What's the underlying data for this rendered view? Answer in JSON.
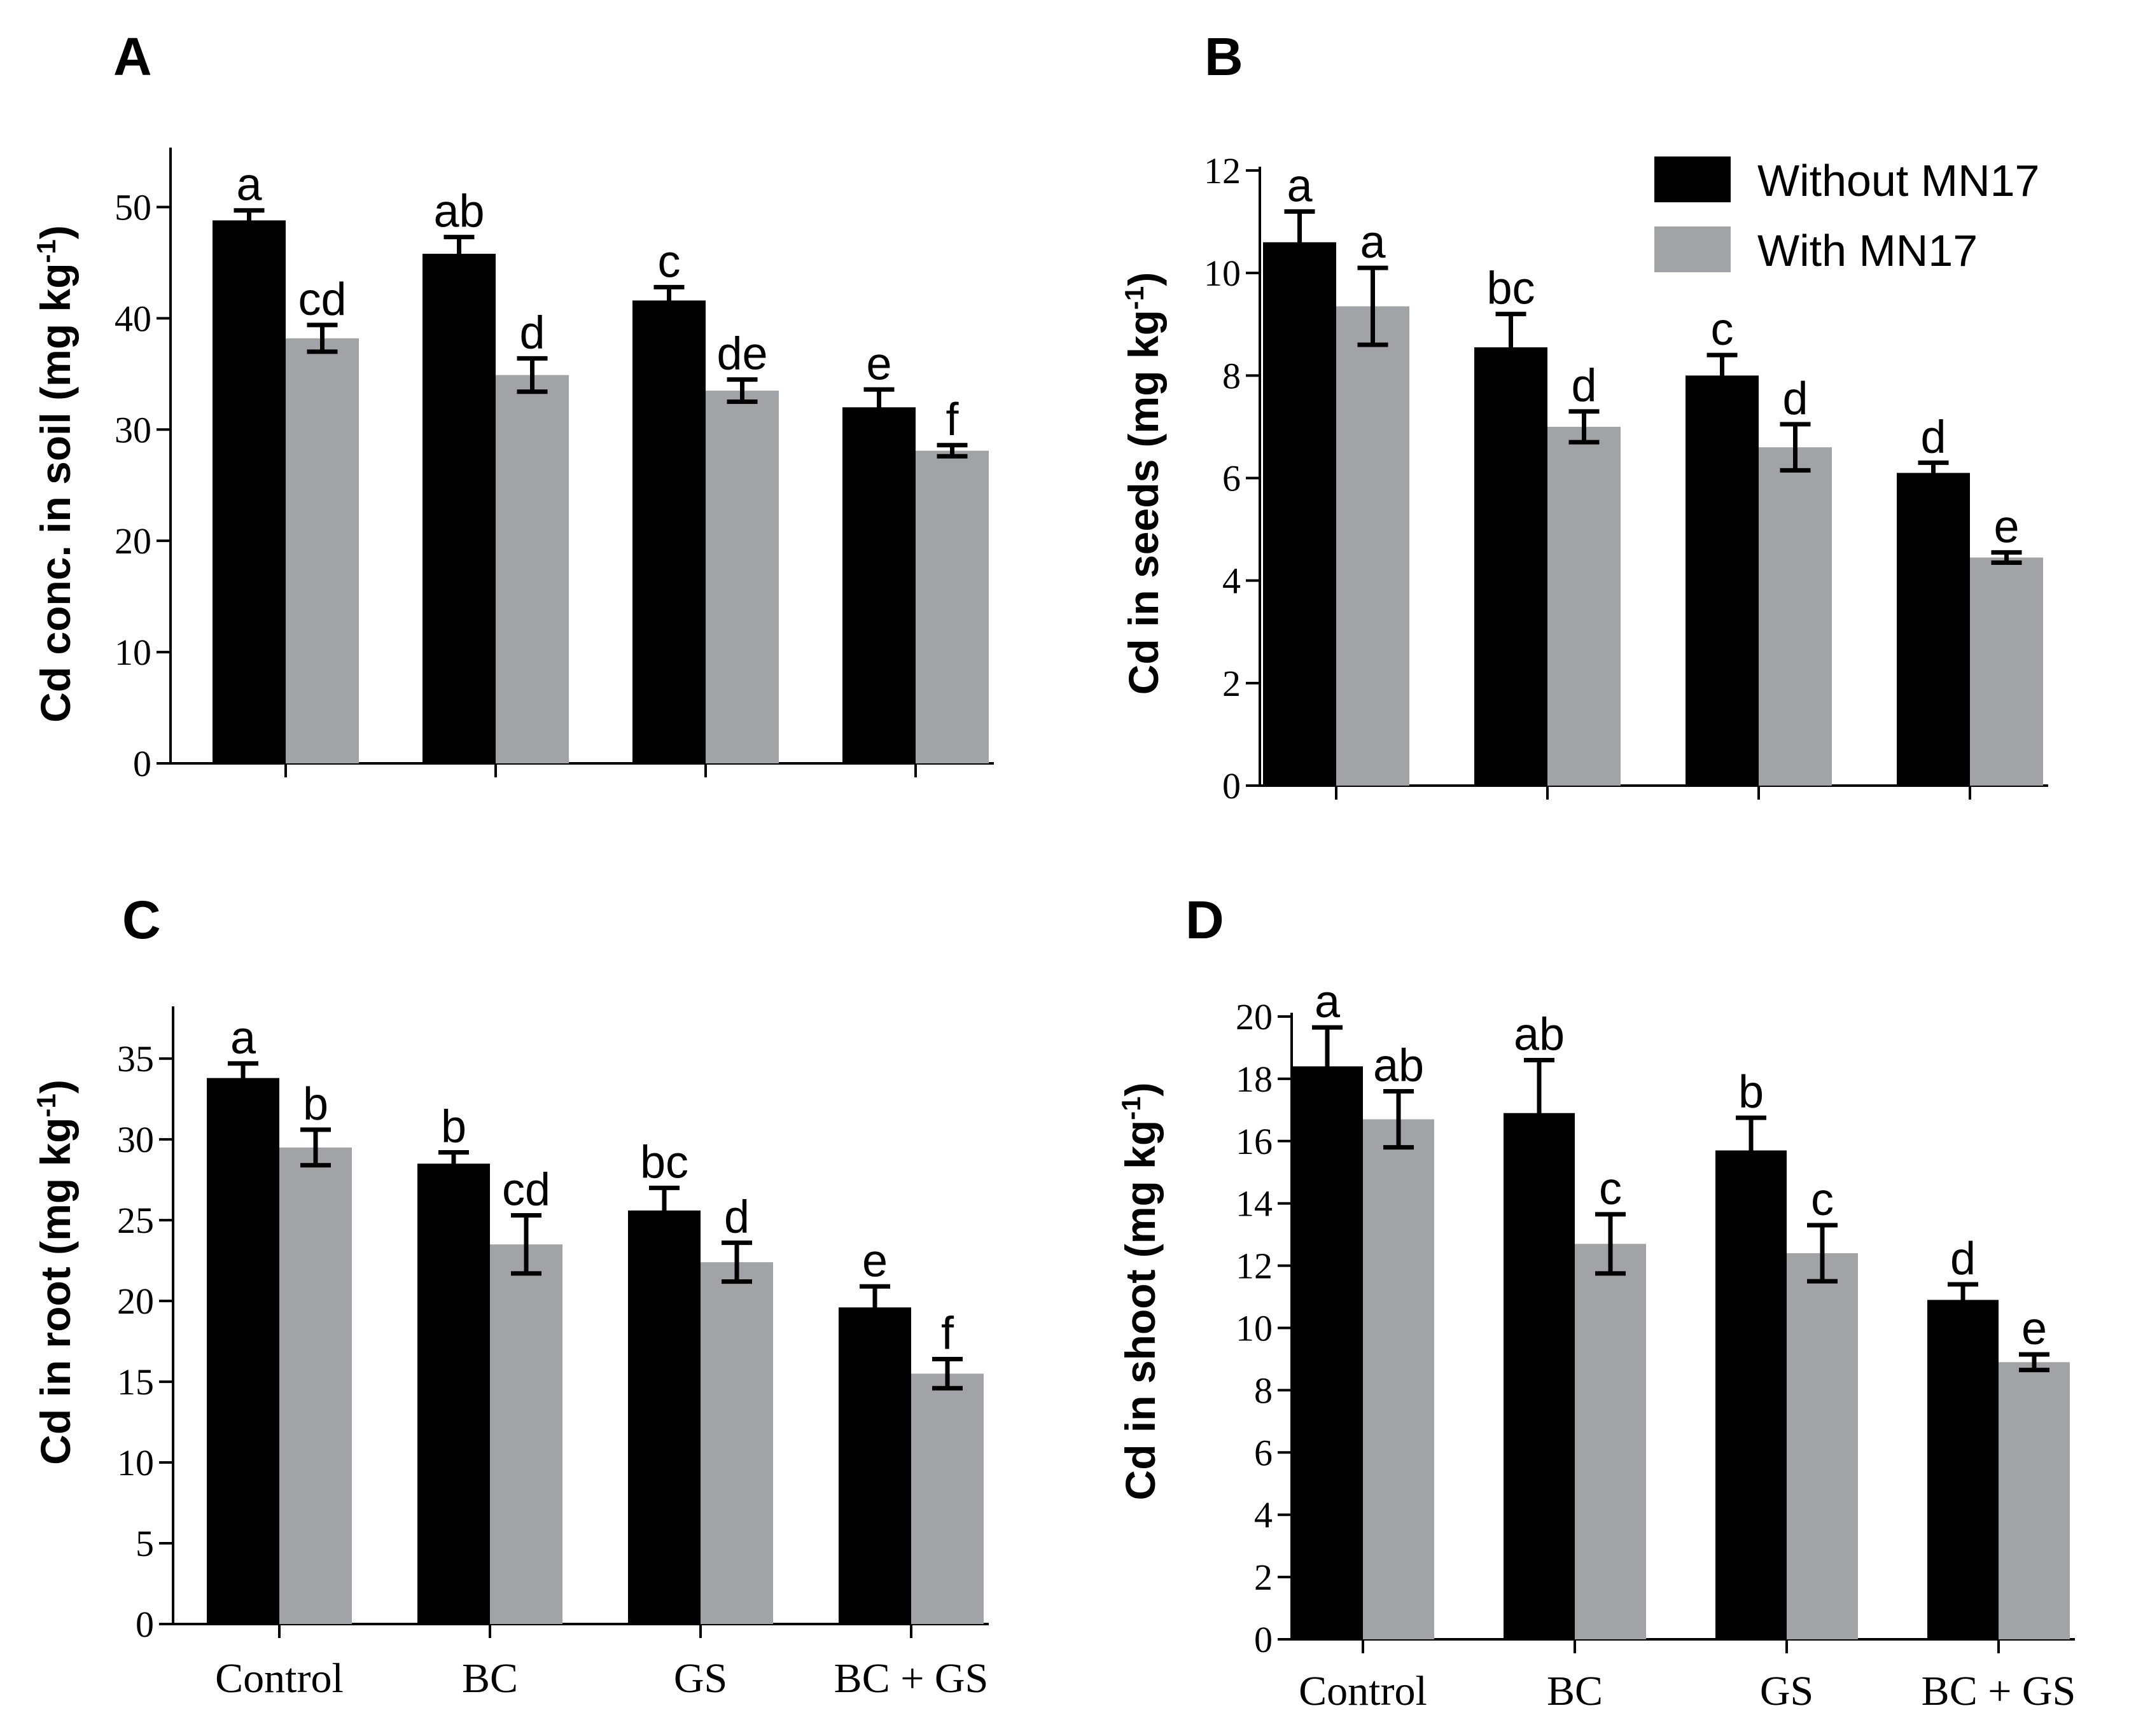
{
  "chart_data": [
    {
      "panel": "A",
      "type": "bar",
      "ylabel": "Cd conc. in soil (mg kg-1)",
      "ylabel_main": "Cd conc. in soil (mg kg",
      "ylabel_sup": "-1",
      "ylabel_close": ")",
      "ylim": [
        0,
        55
      ],
      "yticks": [
        0,
        10,
        20,
        30,
        40,
        50
      ],
      "categories": [
        "Control",
        "BC",
        "GS",
        "BC + GS"
      ],
      "show_categories": false,
      "series": [
        {
          "name": "Without MN17",
          "color": "#000000",
          "values": [
            48.8,
            45.8,
            41.6,
            32.0
          ],
          "errors": [
            0.9,
            1.5,
            1.2,
            1.6
          ],
          "letters": [
            "a",
            "ab",
            "c",
            "e"
          ]
        },
        {
          "name": "With MN17",
          "color": "#a2a3a6",
          "values": [
            38.2,
            34.9,
            33.5,
            28.1
          ],
          "errors": [
            1.2,
            1.5,
            1.0,
            0.5
          ],
          "letters": [
            "cd",
            "d",
            "de",
            "f"
          ]
        }
      ]
    },
    {
      "panel": "B",
      "type": "bar",
      "ylabel": "Cd in seeds (mg kg-1)",
      "ylabel_main": "Cd in seeds (mg kg",
      "ylabel_sup": "-1",
      "ylabel_close": ")",
      "ylim": [
        0,
        12
      ],
      "yticks": [
        0,
        2,
        4,
        6,
        8,
        10,
        12
      ],
      "categories": [
        "Control",
        "BC",
        "GS",
        "BC + GS"
      ],
      "show_categories": false,
      "series": [
        {
          "name": "Without MN17",
          "color": "#000000",
          "values": [
            10.6,
            8.55,
            8.0,
            6.1
          ],
          "errors": [
            0.6,
            0.65,
            0.4,
            0.2
          ],
          "letters": [
            "a",
            "bc",
            "c",
            "d"
          ]
        },
        {
          "name": "With MN17",
          "color": "#a2a3a6",
          "values": [
            9.35,
            7.0,
            6.6,
            4.45
          ],
          "errors": [
            0.75,
            0.3,
            0.45,
            0.1
          ],
          "letters": [
            "a",
            "d",
            "d",
            "e"
          ]
        }
      ]
    },
    {
      "panel": "C",
      "type": "bar",
      "ylabel": "Cd in root (mg kg-1)",
      "ylabel_main": "Cd in root (mg kg",
      "ylabel_sup": "-1",
      "ylabel_close": ")",
      "ylim": [
        0,
        38
      ],
      "yticks": [
        0,
        5,
        10,
        15,
        20,
        25,
        30,
        35
      ],
      "categories": [
        "Control",
        "BC",
        "GS",
        "BC + GS"
      ],
      "show_categories": true,
      "series": [
        {
          "name": "Without MN17",
          "color": "#000000",
          "values": [
            33.8,
            28.5,
            25.6,
            19.6
          ],
          "errors": [
            0.9,
            0.7,
            1.4,
            1.3
          ],
          "letters": [
            "a",
            "b",
            "bc",
            "e"
          ]
        },
        {
          "name": "With MN17",
          "color": "#a2a3a6",
          "values": [
            29.5,
            23.5,
            22.4,
            15.5
          ],
          "errors": [
            1.1,
            1.8,
            1.2,
            0.9
          ],
          "letters": [
            "b",
            "cd",
            "d",
            "f"
          ]
        }
      ]
    },
    {
      "panel": "D",
      "type": "bar",
      "ylabel": "Cd in shoot (mg kg-1)",
      "ylabel_main": "Cd in shoot (mg kg",
      "ylabel_sup": "-1",
      "ylabel_close": ")",
      "ylim": [
        0,
        20
      ],
      "yticks": [
        0,
        2,
        4,
        6,
        8,
        10,
        12,
        14,
        16,
        18,
        20
      ],
      "categories": [
        "Control",
        "BC",
        "GS",
        "BC + GS"
      ],
      "show_categories": true,
      "series": [
        {
          "name": "Without MN17",
          "color": "#000000",
          "values": [
            18.4,
            16.9,
            15.7,
            10.9
          ],
          "errors": [
            1.25,
            1.7,
            1.05,
            0.5
          ],
          "letters": [
            "a",
            "ab",
            "b",
            "d"
          ]
        },
        {
          "name": "With MN17",
          "color": "#a2a3a6",
          "values": [
            16.7,
            12.7,
            12.4,
            8.9
          ],
          "errors": [
            0.9,
            0.95,
            0.9,
            0.25
          ],
          "letters": [
            "ab",
            "c",
            "c",
            "e"
          ]
        }
      ]
    }
  ],
  "legend": [
    {
      "label": "Without MN17",
      "color": "#000000"
    },
    {
      "label": "With MN17",
      "color": "#a2a3a6"
    }
  ]
}
